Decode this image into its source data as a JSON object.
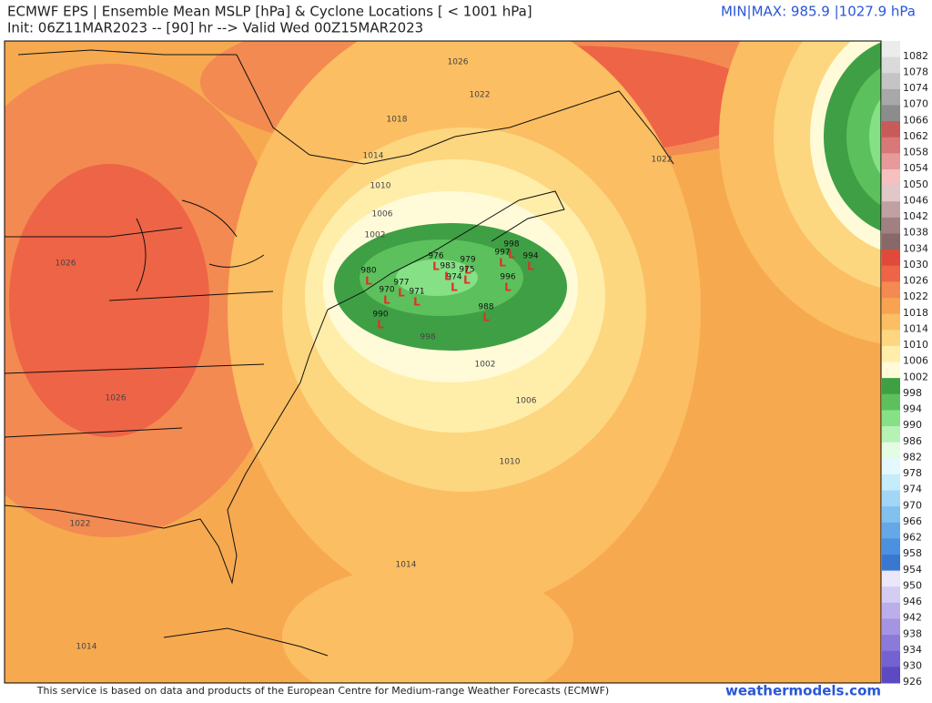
{
  "header": {
    "title": "ECMWF EPS | Ensemble Mean MSLP [hPa] & Cyclone Locations [ < 1001 hPa]",
    "init": "Init: 06Z11MAR2023 -- [90] hr --> Valid Wed 00Z15MAR2023",
    "minmax": "MIN|MAX: 985.9 |1027.9 hPa"
  },
  "colorbar": {
    "bins": [
      {
        "label": 1082,
        "color": "#ececec"
      },
      {
        "label": 1078,
        "color": "#dadada"
      },
      {
        "label": 1074,
        "color": "#c4c4c4"
      },
      {
        "label": 1070,
        "color": "#a8a8a8"
      },
      {
        "label": 1066,
        "color": "#8c8c8c"
      },
      {
        "label": 1062,
        "color": "#c85a5a"
      },
      {
        "label": 1058,
        "color": "#d87878"
      },
      {
        "label": 1054,
        "color": "#e89a9a"
      },
      {
        "label": 1050,
        "color": "#f4c0c0"
      },
      {
        "label": 1046,
        "color": "#e0c8c8"
      },
      {
        "label": 1042,
        "color": "#c0a0a0"
      },
      {
        "label": 1038,
        "color": "#a08080"
      },
      {
        "label": 1034,
        "color": "#886868"
      },
      {
        "label": 1030,
        "color": "#e04a3a"
      },
      {
        "label": 1026,
        "color": "#ee6446"
      },
      {
        "label": 1022,
        "color": "#f38a52"
      },
      {
        "label": 1018,
        "color": "#f7a352"
      },
      {
        "label": 1014,
        "color": "#fbbe62"
      },
      {
        "label": 1010,
        "color": "#fdd680"
      },
      {
        "label": 1006,
        "color": "#ffeeaa"
      },
      {
        "label": 1002,
        "color": "#fffbd8"
      },
      {
        "label": 998,
        "color": "#3f9f44"
      },
      {
        "label": 994,
        "color": "#5cc15c"
      },
      {
        "label": 990,
        "color": "#86e086"
      },
      {
        "label": 986,
        "color": "#b6f2b6"
      },
      {
        "label": 982,
        "color": "#e4fce4"
      },
      {
        "label": 978,
        "color": "#e4f8ff"
      },
      {
        "label": 974,
        "color": "#c4ecfa"
      },
      {
        "label": 970,
        "color": "#a2d6f6"
      },
      {
        "label": 966,
        "color": "#82c0f0"
      },
      {
        "label": 962,
        "color": "#64a8e8"
      },
      {
        "label": 958,
        "color": "#4c90e0"
      },
      {
        "label": 954,
        "color": "#3a78d0"
      },
      {
        "label": 950,
        "color": "#ece6fa"
      },
      {
        "label": 946,
        "color": "#d4ccf2"
      },
      {
        "label": 942,
        "color": "#bcaeea"
      },
      {
        "label": 938,
        "color": "#a494e2"
      },
      {
        "label": 934,
        "color": "#8c7ada"
      },
      {
        "label": 930,
        "color": "#7462d0"
      },
      {
        "label": 926,
        "color": "#5c4ac2"
      }
    ]
  },
  "contour_labels": [
    "1026",
    "1022",
    "1018",
    "1014",
    "1010",
    "1006",
    "1002",
    "998",
    "1002",
    "1006",
    "1010",
    "1014",
    "1022",
    "1026",
    "1022",
    "1026",
    "1014"
  ],
  "cyclones": {
    "marker": "L",
    "items": [
      "998",
      "994",
      "996",
      "997",
      "979",
      "975",
      "974",
      "976",
      "988",
      "990",
      "980",
      "971",
      "970",
      "977",
      "983"
    ]
  },
  "footer": {
    "notice": "This service is based on data and products of the European Centre for Medium-range Weather Forecasts (ECMWF)",
    "brand": "weathermodels.com"
  }
}
